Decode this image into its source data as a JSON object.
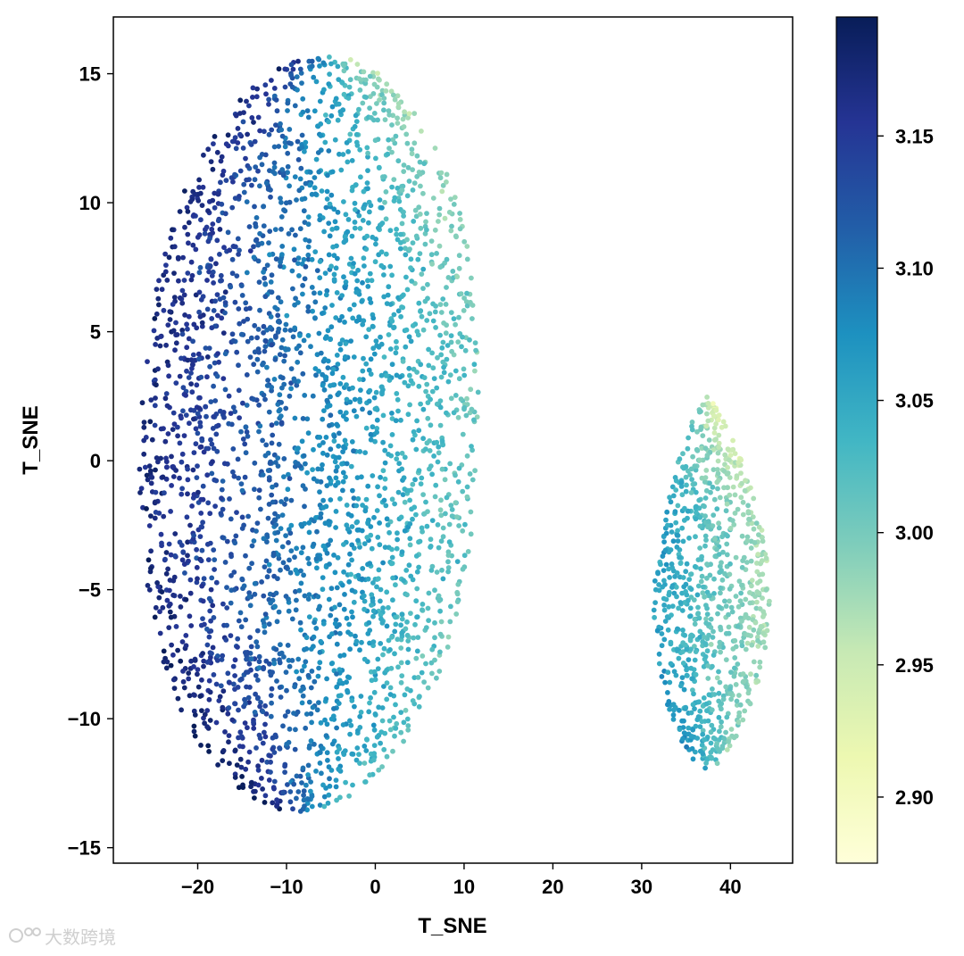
{
  "chart_data": {
    "type": "scatter",
    "title": "",
    "xlabel": "T_SNE",
    "ylabel": "T_SNE",
    "xlim": [
      -29.5,
      47.0
    ],
    "ylim": [
      -15.6,
      17.2
    ],
    "xticks": [
      -20,
      -10,
      0,
      10,
      20,
      30,
      40
    ],
    "xtick_labels": [
      "−20",
      "−10",
      "0",
      "10",
      "20",
      "30",
      "40"
    ],
    "yticks": [
      -15,
      -10,
      -5,
      0,
      5,
      10,
      15
    ],
    "ytick_labels": [
      "−15",
      "−10",
      "−5",
      "0",
      "5",
      "10",
      "15"
    ],
    "grid": false,
    "colormap": "YlGnBu",
    "colormap_stops": [
      "#ffffd9",
      "#edf8b1",
      "#c7e9b4",
      "#7fcdbb",
      "#41b6c4",
      "#1d91c0",
      "#225ea8",
      "#253494",
      "#081d58"
    ],
    "colorbar": {
      "range": [
        2.875,
        3.195
      ],
      "ticks": [
        2.9,
        2.95,
        3.0,
        3.05,
        3.1,
        3.15
      ],
      "tick_labels": [
        "2.90",
        "2.95",
        "3.00",
        "3.05",
        "3.10",
        "3.15"
      ]
    },
    "clusters": [
      {
        "center": [
          -8,
          1
        ],
        "x_range": [
          -26.5,
          11.5
        ],
        "y_range": [
          -14,
          15.7
        ],
        "approx_points": 3000,
        "value_range": [
          2.93,
          3.18
        ]
      },
      {
        "center": [
          37.5,
          -4.5
        ],
        "x_range": [
          30,
          44
        ],
        "y_range": [
          -12,
          2.5
        ],
        "approx_points": 850,
        "value_range": [
          2.93,
          3.09
        ]
      }
    ]
  },
  "watermark": "大数跨境"
}
